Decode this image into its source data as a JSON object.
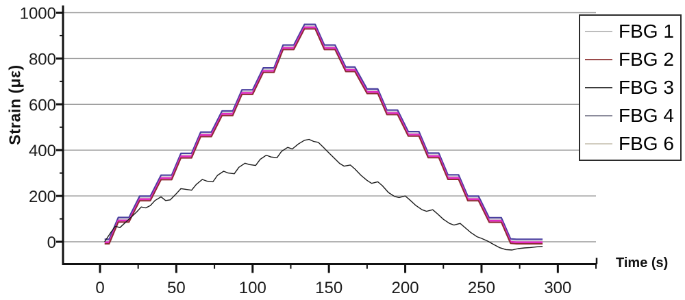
{
  "figure": {
    "background": "#ffffff"
  },
  "chart_data": {
    "type": "line",
    "title": "",
    "xlabel": "Time (s)",
    "ylabel": "Strain (με)",
    "xlim": [
      -24,
      325
    ],
    "ylim": [
      -98,
      1030
    ],
    "x_major_ticks": [
      0,
      50,
      100,
      150,
      200,
      250,
      300
    ],
    "x_minor_ticks": [
      25,
      75,
      125,
      175,
      225,
      275,
      325
    ],
    "y_major_ticks": [
      0,
      200,
      400,
      600,
      800,
      1000
    ],
    "y_minor_ticks": [
      100,
      300,
      500,
      700,
      900
    ],
    "grid": "horizontal-major",
    "grid_color": "#9a9a9a",
    "axis_color": "#111111",
    "tick_label_color": "#1a1a1a",
    "legend_position": "top-right",
    "base_profile": [
      [
        3,
        0
      ],
      [
        6,
        0
      ],
      [
        12,
        95
      ],
      [
        19,
        95
      ],
      [
        26,
        188
      ],
      [
        33,
        188
      ],
      [
        40,
        280
      ],
      [
        47,
        280
      ],
      [
        53,
        375
      ],
      [
        60,
        375
      ],
      [
        66,
        468
      ],
      [
        73,
        468
      ],
      [
        80,
        560
      ],
      [
        87,
        560
      ],
      [
        93,
        652
      ],
      [
        100,
        652
      ],
      [
        107,
        748
      ],
      [
        114,
        748
      ],
      [
        120,
        848
      ],
      [
        127,
        848
      ],
      [
        134,
        938
      ],
      [
        141,
        938
      ],
      [
        147,
        848
      ],
      [
        154,
        848
      ],
      [
        161,
        752
      ],
      [
        167,
        752
      ],
      [
        175,
        656
      ],
      [
        182,
        656
      ],
      [
        188,
        564
      ],
      [
        195,
        564
      ],
      [
        202,
        470
      ],
      [
        209,
        470
      ],
      [
        215,
        376
      ],
      [
        222,
        376
      ],
      [
        228,
        281
      ],
      [
        235,
        281
      ],
      [
        241,
        188
      ],
      [
        248,
        188
      ],
      [
        255,
        94
      ],
      [
        263,
        94
      ],
      [
        269,
        2
      ],
      [
        273,
        0
      ],
      [
        290,
        0
      ]
    ],
    "series": [
      {
        "name": "FBG 1",
        "legend_color": "#bdbdbd",
        "line_color": "#c9c9c9",
        "width": 1.4,
        "offset": 4,
        "uses_base_profile": true
      },
      {
        "name": "FBG 2",
        "legend_color": "#9a4a4a",
        "line_color": "#8f2b35",
        "width": 2.0,
        "offset": -9,
        "uses_base_profile": true
      },
      {
        "name": "FBG 3",
        "legend_color": "#3c3c3c",
        "line_color": "#1a1a1a",
        "width": 1.4,
        "points": [
          [
            3,
            0
          ],
          [
            7,
            40
          ],
          [
            10,
            68
          ],
          [
            13,
            62
          ],
          [
            16,
            80
          ],
          [
            20,
            105
          ],
          [
            24,
            130
          ],
          [
            27,
            152
          ],
          [
            30,
            148
          ],
          [
            33,
            158
          ],
          [
            36,
            180
          ],
          [
            40,
            196
          ],
          [
            43,
            180
          ],
          [
            46,
            183
          ],
          [
            50,
            210
          ],
          [
            53,
            232
          ],
          [
            57,
            228
          ],
          [
            60,
            225
          ],
          [
            63,
            250
          ],
          [
            67,
            272
          ],
          [
            70,
            265
          ],
          [
            74,
            262
          ],
          [
            77,
            290
          ],
          [
            81,
            308
          ],
          [
            84,
            300
          ],
          [
            88,
            297
          ],
          [
            91,
            325
          ],
          [
            95,
            343
          ],
          [
            98,
            337
          ],
          [
            102,
            333
          ],
          [
            105,
            360
          ],
          [
            109,
            378
          ],
          [
            112,
            370
          ],
          [
            116,
            367
          ],
          [
            119,
            395
          ],
          [
            123,
            412
          ],
          [
            126,
            405
          ],
          [
            130,
            427
          ],
          [
            134,
            443
          ],
          [
            137,
            447
          ],
          [
            140,
            438
          ],
          [
            143,
            434
          ],
          [
            146,
            415
          ],
          [
            150,
            388
          ],
          [
            153,
            368
          ],
          [
            157,
            342
          ],
          [
            160,
            330
          ],
          [
            164,
            335
          ],
          [
            167,
            318
          ],
          [
            171,
            290
          ],
          [
            175,
            268
          ],
          [
            178,
            255
          ],
          [
            182,
            262
          ],
          [
            185,
            245
          ],
          [
            189,
            215
          ],
          [
            193,
            198
          ],
          [
            196,
            193
          ],
          [
            200,
            200
          ],
          [
            203,
            183
          ],
          [
            207,
            158
          ],
          [
            211,
            140
          ],
          [
            214,
            133
          ],
          [
            218,
            140
          ],
          [
            221,
            123
          ],
          [
            225,
            98
          ],
          [
            229,
            80
          ],
          [
            232,
            73
          ],
          [
            236,
            80
          ],
          [
            239,
            63
          ],
          [
            243,
            40
          ],
          [
            247,
            22
          ],
          [
            250,
            15
          ],
          [
            254,
            3
          ],
          [
            258,
            -12
          ],
          [
            262,
            -26
          ],
          [
            266,
            -34
          ],
          [
            270,
            -36
          ],
          [
            274,
            -30
          ],
          [
            278,
            -27
          ],
          [
            282,
            -25
          ],
          [
            286,
            -22
          ],
          [
            290,
            -20
          ]
        ]
      },
      {
        "name": "FBG 4",
        "legend_color": "#8c8c9c",
        "line_color": "#4a3f9f",
        "width": 2.2,
        "offset": 11,
        "uses_base_profile": true
      },
      {
        "name": "FBG 6",
        "legend_color": "#d2cdc0",
        "line_color": "#e22cc3",
        "width": 2.6,
        "offset": -2,
        "uses_base_profile": true
      }
    ],
    "draw_order": [
      "FBG 1",
      "FBG 4",
      "FBG 6",
      "FBG 2",
      "FBG 3"
    ],
    "legend_entries": [
      "FBG 1",
      "FBG 2",
      "FBG 3",
      "FBG 4",
      "FBG 6"
    ]
  }
}
